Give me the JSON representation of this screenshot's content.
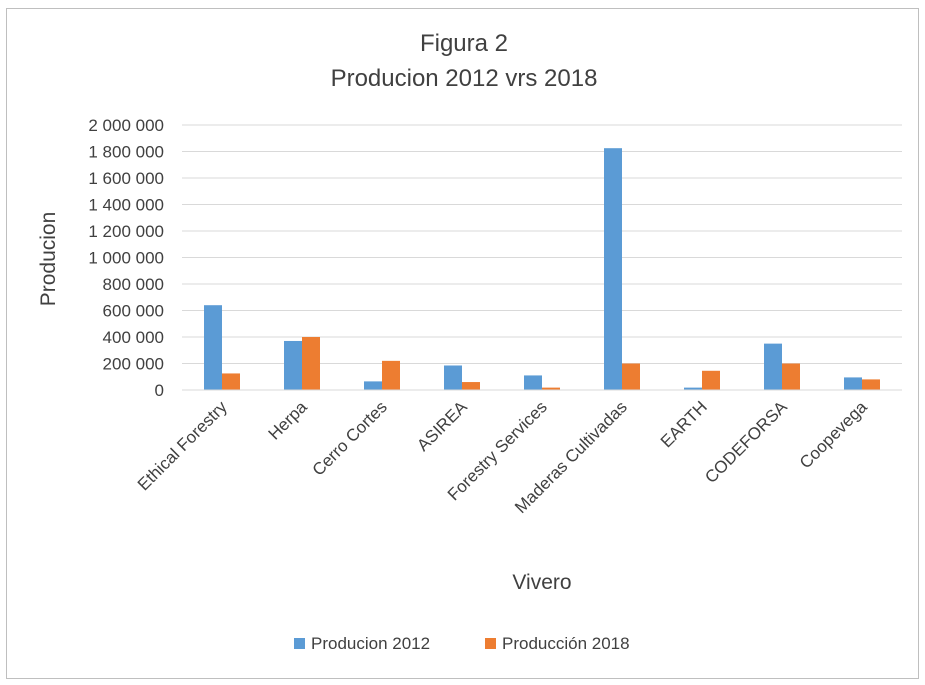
{
  "colors": {
    "series_2012": "#5b9bd5",
    "series_2018": "#ed7d31"
  },
  "chart_data": {
    "type": "bar",
    "title": "Figura 2",
    "subtitle": "Producion 2012 vrs 2018",
    "xlabel": "Vivero",
    "ylabel": "Producion",
    "ylim": [
      0,
      2000000
    ],
    "yticks": [
      0,
      200000,
      400000,
      600000,
      800000,
      1000000,
      1200000,
      1400000,
      1600000,
      1800000,
      2000000
    ],
    "ytick_labels": [
      "0",
      "200 000",
      "400 000",
      "600 000",
      "800 000",
      "1 000 000",
      "1 200 000",
      "1 400 000",
      "1 600 000",
      "1 800 000",
      "2 000 000"
    ],
    "grid": true,
    "legend_position": "bottom",
    "categories": [
      "Ethical Forestry",
      "Herpa",
      "Cerro Cortes",
      "ASIREA",
      "Forestry Services",
      "Maderas Cultivadas",
      "EARTH",
      "CODEFORSA",
      "Coopevega"
    ],
    "series": [
      {
        "name": "Producion 2012",
        "values": [
          640000,
          370000,
          65000,
          185000,
          110000,
          1825000,
          18000,
          350000,
          95000
        ]
      },
      {
        "name": "Producción 2018",
        "values": [
          125000,
          400000,
          220000,
          60000,
          18000,
          200000,
          145000,
          200000,
          80000
        ]
      }
    ]
  }
}
